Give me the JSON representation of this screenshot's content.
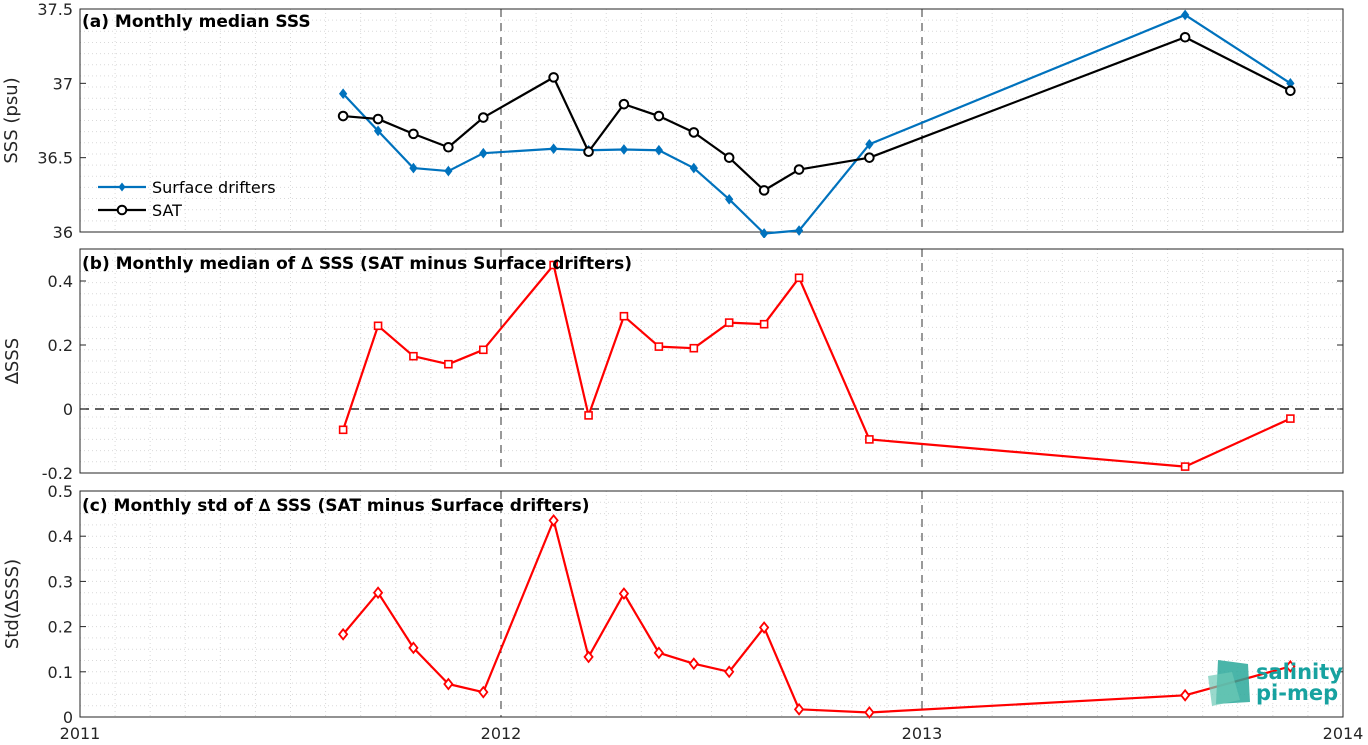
{
  "chart_data": [
    {
      "type": "line",
      "title": "(a) Monthly median SSS",
      "xlabel": "",
      "ylabel": "SSS (psu)",
      "xlim": [
        2011,
        2014
      ],
      "ylim": [
        36,
        37.5
      ],
      "yticks": [
        "36",
        "36.5",
        "37",
        "37.5"
      ],
      "xticks": [],
      "grid": "minor dotted",
      "legend_position": "center-left",
      "series": [
        {
          "name": "Surface drifters",
          "color": "#0072bd",
          "marker": "diamond-filled",
          "x": [
            2011.625,
            2011.708,
            2011.792,
            2011.875,
            2011.958,
            2012.125,
            2012.208,
            2012.292,
            2012.375,
            2012.458,
            2012.542,
            2012.625,
            2012.708,
            2012.875,
            2013.625,
            2013.875
          ],
          "y": [
            36.93,
            36.68,
            36.43,
            36.41,
            36.53,
            36.56,
            36.55,
            36.555,
            36.55,
            36.43,
            36.22,
            35.99,
            36.01,
            36.59,
            37.46,
            37.0
          ]
        },
        {
          "name": "SAT",
          "color": "#000000",
          "marker": "circle-open",
          "x": [
            2011.625,
            2011.708,
            2011.792,
            2011.875,
            2011.958,
            2012.125,
            2012.208,
            2012.292,
            2012.375,
            2012.458,
            2012.542,
            2012.625,
            2012.708,
            2012.875,
            2013.625,
            2013.875
          ],
          "y": [
            36.78,
            36.76,
            36.66,
            36.57,
            36.77,
            37.04,
            36.54,
            36.86,
            36.78,
            36.67,
            36.5,
            36.28,
            36.42,
            36.5,
            37.31,
            36.95
          ]
        }
      ]
    },
    {
      "type": "line",
      "title": "(b) Monthly median of ∆ SSS (SAT minus Surface drifters)",
      "xlabel": "",
      "ylabel": "∆SSS",
      "xlim": [
        2011,
        2014
      ],
      "ylim": [
        -0.2,
        0.5
      ],
      "yticks": [
        "-0.2",
        "0",
        "0.2",
        "0.4"
      ],
      "xticks": [],
      "grid": "minor dotted",
      "zero_line": "dashed",
      "series": [
        {
          "color": "#ff0000",
          "marker": "square-open",
          "x": [
            2011.625,
            2011.708,
            2011.792,
            2011.875,
            2011.958,
            2012.125,
            2012.208,
            2012.292,
            2012.375,
            2012.458,
            2012.542,
            2012.625,
            2012.708,
            2012.875,
            2013.625,
            2013.875
          ],
          "y": [
            -0.065,
            0.26,
            0.165,
            0.14,
            0.185,
            0.45,
            -0.02,
            0.29,
            0.195,
            0.19,
            0.27,
            0.265,
            0.41,
            -0.095,
            -0.18,
            -0.03
          ]
        }
      ]
    },
    {
      "type": "line",
      "title": "(c) Monthly std of ∆ SSS (SAT minus Surface drifters)",
      "xlabel": "",
      "ylabel": "Std(∆SSS)",
      "xlim": [
        2011,
        2014
      ],
      "ylim": [
        0,
        0.5
      ],
      "yticks": [
        "0",
        "0.1",
        "0.2",
        "0.3",
        "0.4",
        "0.5"
      ],
      "xticks": [
        "2011",
        "2012",
        "2013",
        "2014"
      ],
      "grid": "minor dotted",
      "series": [
        {
          "color": "#ff0000",
          "marker": "diamond-open",
          "x": [
            2011.625,
            2011.708,
            2011.792,
            2011.875,
            2011.958,
            2012.125,
            2012.208,
            2012.292,
            2012.375,
            2012.458,
            2012.542,
            2012.625,
            2012.708,
            2012.875,
            2013.625,
            2013.875
          ],
          "y": [
            0.183,
            0.275,
            0.153,
            0.073,
            0.055,
            0.435,
            0.133,
            0.273,
            0.142,
            0.118,
            0.1,
            0.198,
            0.017,
            0.01,
            0.048,
            0.112
          ]
        }
      ]
    }
  ],
  "logo": {
    "line1": "salinity",
    "line2": "pi-mep"
  }
}
